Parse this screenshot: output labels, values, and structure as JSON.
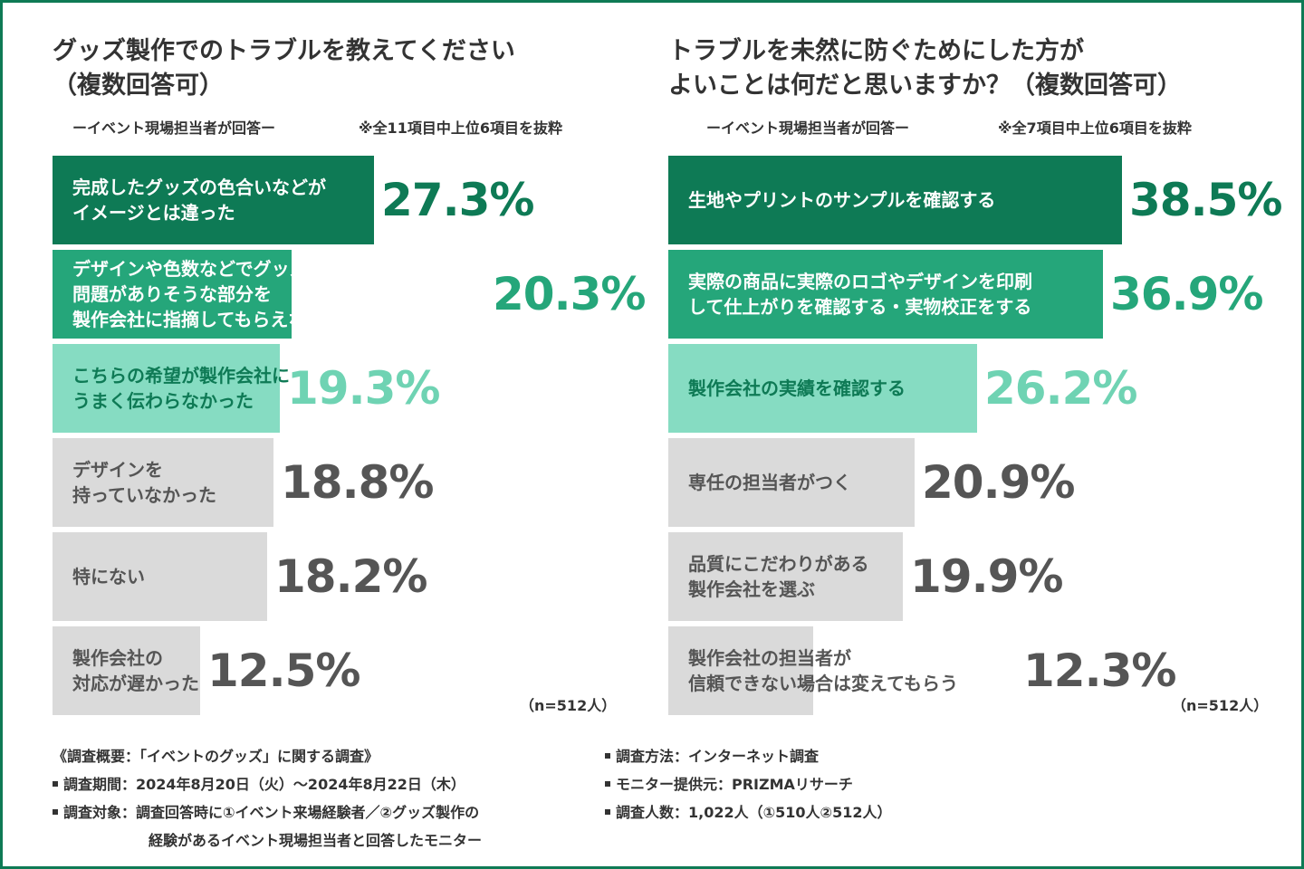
{
  "colors": {
    "dark": "#0e7a55",
    "mid": "#25a67a",
    "light": "#86dcc2",
    "gray": "#dadada",
    "grayText": "#555555",
    "lightText": "#6fd3b3",
    "frame": "#0e7a55"
  },
  "chart_data": [
    {
      "type": "bar",
      "orientation": "horizontal",
      "title": [
        "グッズ製作でのトラブルを教えてください",
        "（複数回答可）"
      ],
      "respondent_note": "ーイベント現場担当者が回答ー",
      "selection_note": "※全11項目中上位6項目を抜粋",
      "sample_note": "（n=512人）",
      "unit": "%",
      "xlim": [
        0,
        100
      ],
      "categories": [
        [
          "完成したグッズの色合いなどが",
          "イメージとは違った"
        ],
        [
          "デザインや色数などでグッズに印刷するのに",
          "問題がありそうな部分を",
          "製作会社に指摘してもらえなかった"
        ],
        [
          "こちらの希望が製作会社に",
          "うまく伝わらなかった"
        ],
        [
          "デザインを",
          "持っていなかった"
        ],
        [
          "特にない"
        ],
        [
          "製作会社の",
          "対応が遅かった"
        ]
      ],
      "values": [
        27.3,
        20.3,
        19.3,
        18.8,
        18.2,
        12.5
      ],
      "value_labels": [
        "27.3%",
        "20.3%",
        "19.3%",
        "18.8%",
        "18.2%",
        "12.5%"
      ]
    },
    {
      "type": "bar",
      "orientation": "horizontal",
      "title": [
        "トラブルを未然に防ぐためにした方が",
        "よいことは何だと思いますか？（複数回答可）"
      ],
      "respondent_note": "ーイベント現場担当者が回答ー",
      "selection_note": "※全7項目中上位6項目を抜粋",
      "sample_note": "（n=512人）",
      "unit": "%",
      "xlim": [
        0,
        100
      ],
      "categories": [
        [
          "生地やプリントのサンプルを確認する"
        ],
        [
          "実際の商品に実際のロゴやデザインを印刷",
          "して仕上がりを確認する・実物校正をする"
        ],
        [
          "製作会社の実績を確認する"
        ],
        [
          "専任の担当者がつく"
        ],
        [
          "品質にこだわりがある",
          "製作会社を選ぶ"
        ],
        [
          "製作会社の担当者が",
          "信頼できない場合は変えてもらう"
        ]
      ],
      "values": [
        38.5,
        36.9,
        26.2,
        20.9,
        19.9,
        12.3
      ],
      "value_labels": [
        "38.5%",
        "36.9%",
        "26.2%",
        "20.9%",
        "19.9%",
        "12.3%"
      ]
    }
  ],
  "footer": {
    "overview": "《調査概要：「イベントのグッズ」に関する調査》",
    "period": "調査期間：2024年8月20日（火）～2024年8月22日（木）",
    "target": "調査対象：調査回答時に①イベント来場経験者／②グッズ製作の",
    "target_cont": "経験があるイベント現場担当者と回答したモニター",
    "method": "調査方法：インターネット調査",
    "provider": "モニター提供元：PRIZMAリサーチ",
    "count": "調査人数：1,022人（①510人②512人）"
  }
}
